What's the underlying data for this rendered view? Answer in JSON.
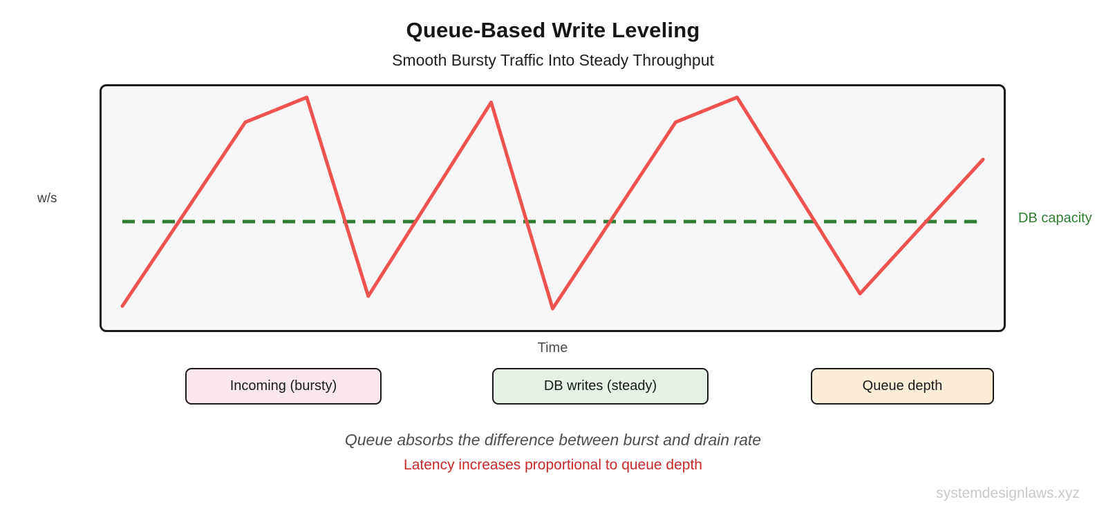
{
  "header": {
    "title": "Queue-Based Write Leveling",
    "subtitle": "Smooth Bursty Traffic Into Steady Throughput"
  },
  "chart": {
    "y_axis_label": "w/s",
    "x_axis_label": "Time",
    "capacity_label": "DB capacity",
    "plot_background": "#f7f7f8",
    "border_color": "#1a1a1c"
  },
  "chart_data": {
    "type": "line",
    "title": "Queue-Based Write Leveling",
    "subtitle": "Smooth Bursty Traffic Into Steady Throughput",
    "xlabel": "Time",
    "ylabel": "w/s",
    "xlim": [
      0,
      14
    ],
    "ylim": [
      0,
      100
    ],
    "grid": false,
    "x": [
      0,
      2,
      3,
      4,
      6,
      7,
      9,
      10,
      12,
      14
    ],
    "series": [
      {
        "name": "Incoming (bursty)",
        "color": "#ef5350",
        "stroke_width": 5,
        "values": [
          11,
          85,
          95,
          15,
          93,
          10,
          85,
          95,
          16,
          70
        ]
      }
    ],
    "capacity_line": {
      "label": "DB capacity",
      "value": 45,
      "color": "#2e7d32",
      "style": "dashed",
      "dash_pattern": [
        18,
        11
      ],
      "stroke_width": 5
    },
    "legend_position": "below-chart"
  },
  "legend": [
    {
      "label": "Incoming (bursty)",
      "bg": "#fce7ec"
    },
    {
      "label": "DB writes (steady)",
      "bg": "#e4f1e4"
    },
    {
      "label": "Queue depth",
      "bg": "#fcedd6"
    }
  ],
  "notes": {
    "primary": "Queue absorbs the difference between burst and drain rate",
    "secondary": "Latency increases proportional to queue depth"
  },
  "footer": {
    "watermark": "systemdesignlaws.xyz"
  },
  "colors": {
    "incoming_line": "#ef5350",
    "capacity_line": "#2e7d32",
    "note_secondary": "#c62828",
    "watermark": "#c9c9c9"
  }
}
